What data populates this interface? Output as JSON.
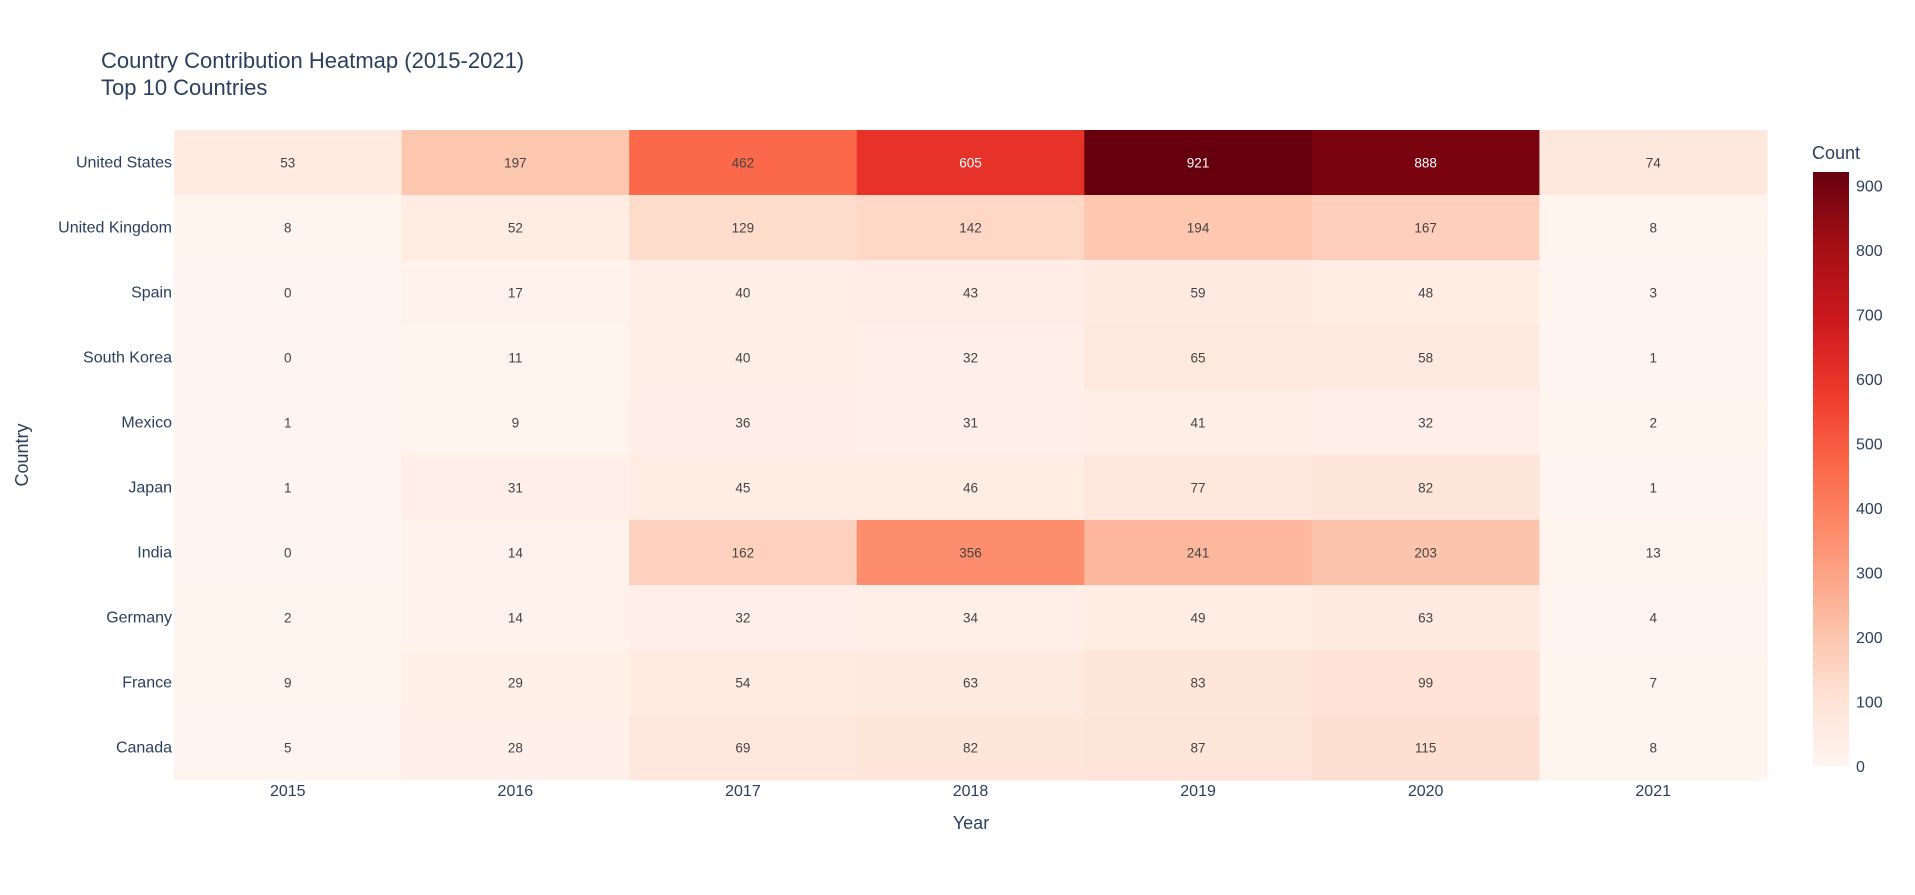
{
  "chart_data": {
    "type": "heatmap",
    "title": "Country Contribution Heatmap (2015-2021)",
    "subtitle": "Top 10 Countries",
    "xlabel": "Year",
    "ylabel": "Country",
    "colorbar_title": "Count",
    "colorscale": "Reds",
    "zmin": 0,
    "zmax": 921,
    "colorbar_ticks": [
      "0",
      "100",
      "200",
      "300",
      "400",
      "500",
      "600",
      "700",
      "800",
      "900"
    ],
    "x": [
      "2015",
      "2016",
      "2017",
      "2018",
      "2019",
      "2020",
      "2021"
    ],
    "y": [
      "United States",
      "United Kingdom",
      "Spain",
      "South Korea",
      "Mexico",
      "Japan",
      "India",
      "Germany",
      "France",
      "Canada"
    ],
    "z": [
      [
        53,
        197,
        462,
        605,
        921,
        888,
        74
      ],
      [
        8,
        52,
        129,
        142,
        194,
        167,
        8
      ],
      [
        0,
        17,
        40,
        43,
        59,
        48,
        3
      ],
      [
        0,
        11,
        40,
        32,
        65,
        58,
        1
      ],
      [
        1,
        9,
        36,
        31,
        41,
        32,
        2
      ],
      [
        1,
        31,
        45,
        46,
        77,
        82,
        1
      ],
      [
        0,
        14,
        162,
        356,
        241,
        203,
        13
      ],
      [
        2,
        14,
        32,
        34,
        49,
        63,
        4
      ],
      [
        9,
        29,
        54,
        63,
        83,
        99,
        7
      ],
      [
        5,
        28,
        69,
        82,
        87,
        115,
        8
      ]
    ]
  }
}
